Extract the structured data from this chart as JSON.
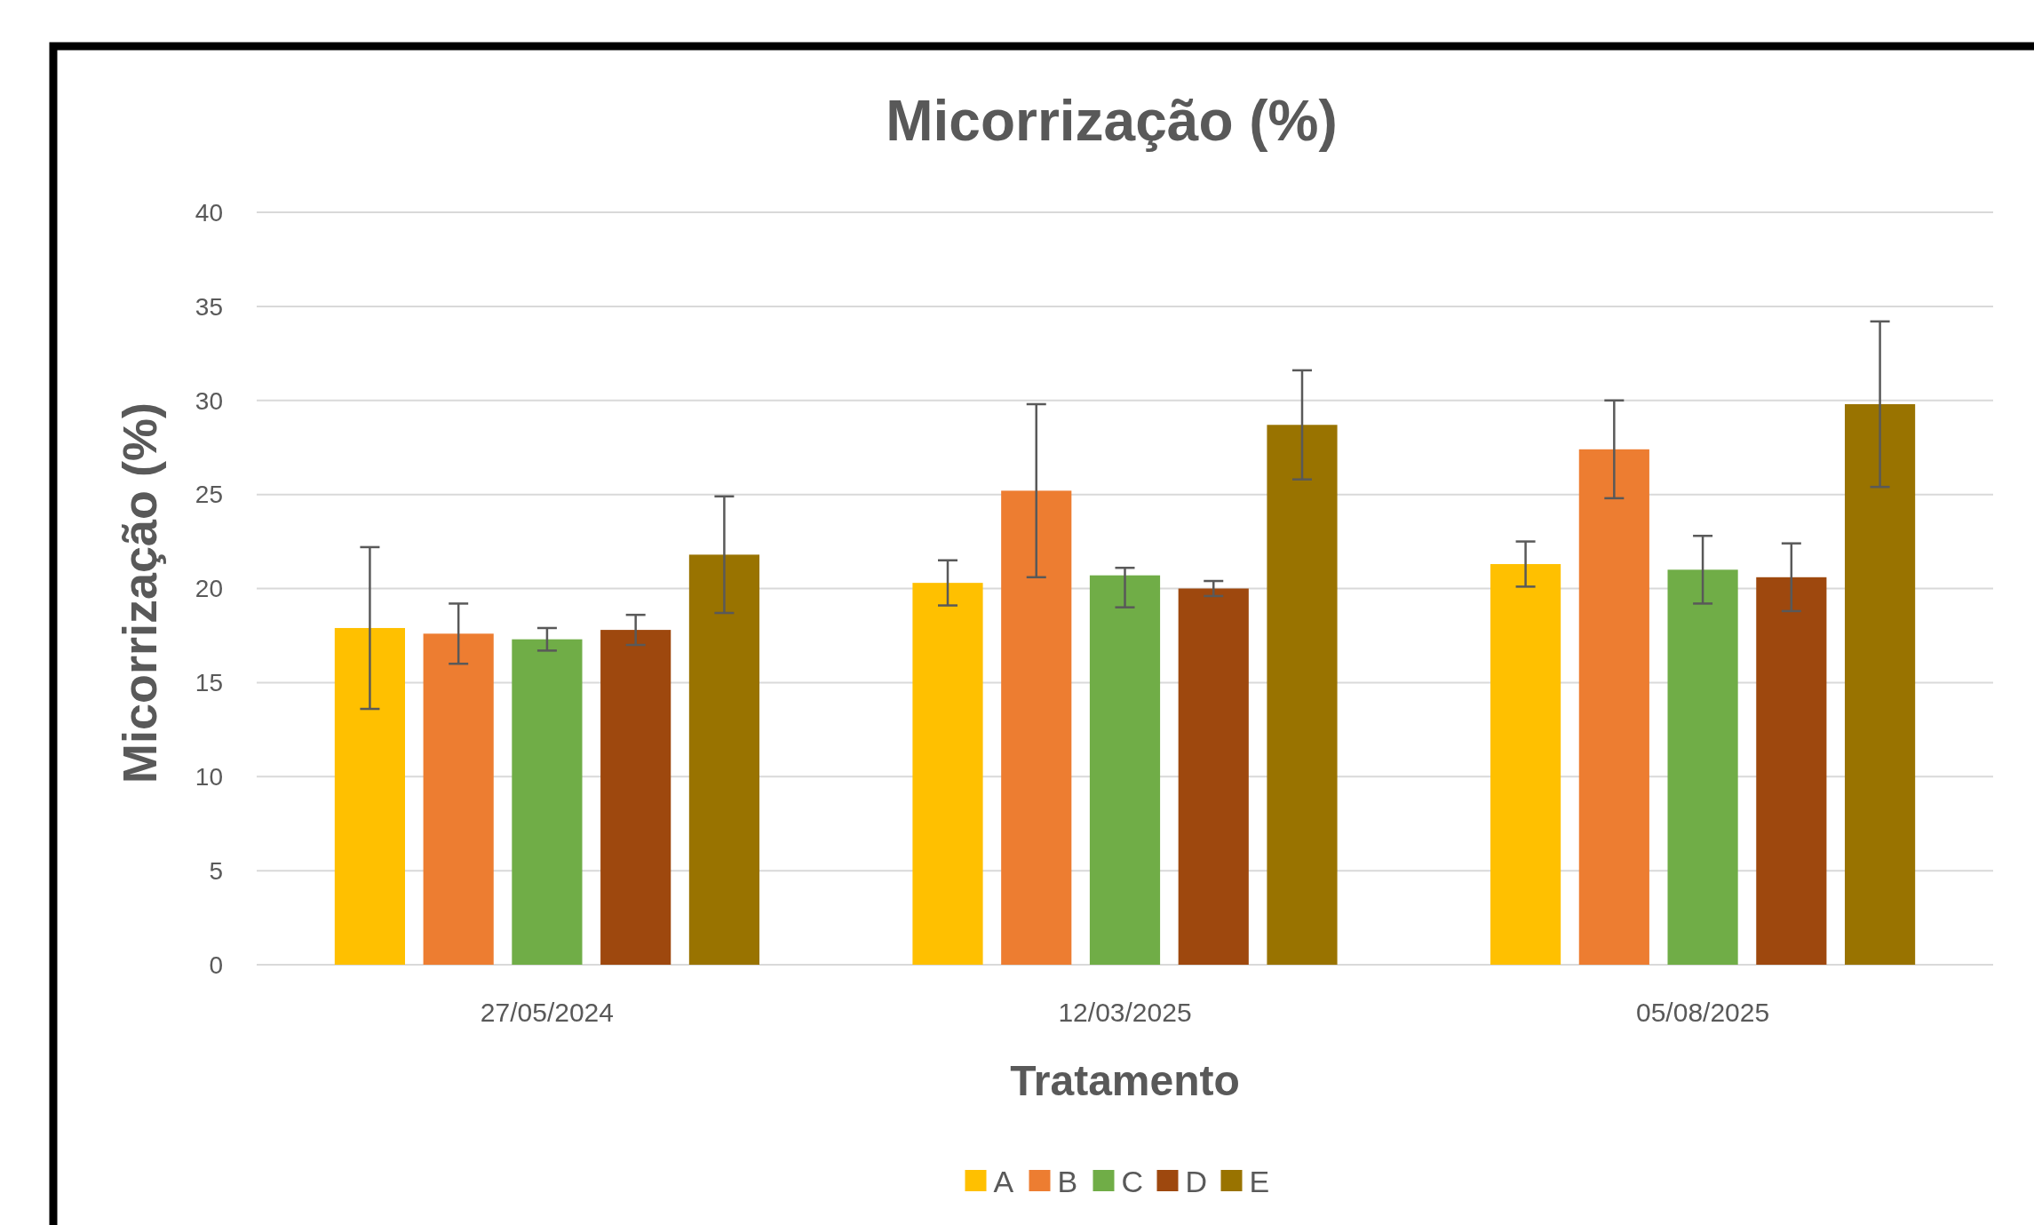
{
  "chart_data": {
    "type": "bar",
    "title": "Micorrização (%)",
    "xlabel": "Tratamento",
    "ylabel": "Micorrização (%)",
    "categories": [
      "27/05/2024",
      "12/03/2025",
      "05/08/2025"
    ],
    "series": [
      {
        "name": "A",
        "color": "#ffc000",
        "values": [
          17.9,
          20.3,
          21.3
        ],
        "errors": [
          4.3,
          1.2,
          1.2
        ]
      },
      {
        "name": "B",
        "color": "#ed7d31",
        "values": [
          17.6,
          25.2,
          27.4
        ],
        "errors": [
          1.6,
          4.6,
          2.6
        ]
      },
      {
        "name": "C",
        "color": "#70ad47",
        "values": [
          17.3,
          20.7,
          21.0
        ],
        "errors": [
          0.6,
          [
            19.0,
            21.1
          ],
          1.8
        ]
      },
      {
        "name": "D",
        "color": "#9e480e",
        "values": [
          17.8,
          20.0,
          20.6
        ],
        "errors": [
          0.8,
          0.4,
          1.8
        ]
      },
      {
        "name": "E",
        "color": "#997300",
        "values": [
          21.8,
          28.7,
          29.8
        ],
        "errors": [
          3.1,
          2.9,
          4.4
        ]
      }
    ],
    "ylim": [
      0,
      40
    ],
    "yticks": [
      0,
      5,
      10,
      15,
      20,
      25,
      30,
      35,
      40
    ],
    "grid": "y",
    "legend": "bottom"
  }
}
